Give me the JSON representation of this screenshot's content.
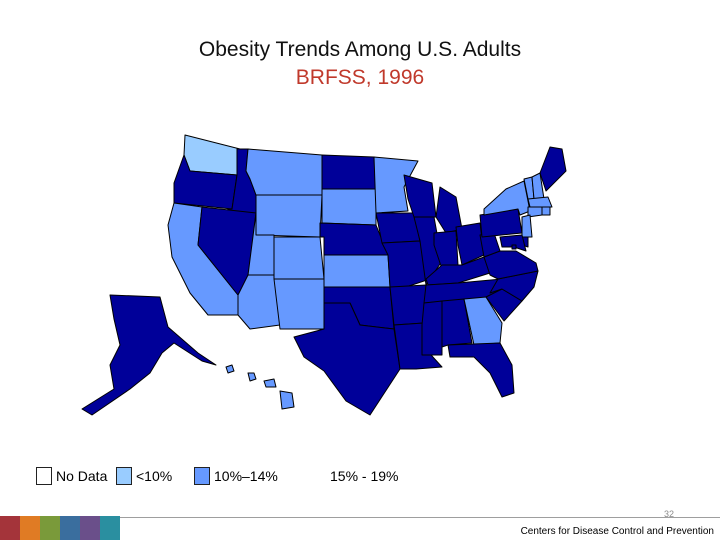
{
  "title": "Obesity Trends Among U.S. Adults",
  "subtitle": "BRFSS, 1996",
  "colors": {
    "no_data": "#ffffff",
    "lt10": "#99ccff",
    "p10_14": "#6699ff",
    "p15_19": "#000099",
    "border": "#000000",
    "subtitle": "#c0392b"
  },
  "legend": [
    {
      "label": "No Data",
      "category": "no_data"
    },
    {
      "label": "<10%",
      "category": "lt10"
    },
    {
      "label": "10%–14%",
      "category": "p10_14"
    },
    {
      "label": "15% - 19%",
      "category": "p15_19"
    }
  ],
  "states": {
    "WA": "lt10",
    "OR": "p15_19",
    "ID": "p15_19",
    "MT": "p10_14",
    "WY": "p10_14",
    "CA": "p10_14",
    "NV": "p15_19",
    "UT": "p10_14",
    "AZ": "p10_14",
    "CO": "p10_14",
    "NM": "p10_14",
    "ND": "p15_19",
    "SD": "p10_14",
    "NE": "p15_19",
    "KS": "p10_14",
    "OK": "p15_19",
    "TX": "p15_19",
    "MN": "p10_14",
    "IA": "p15_19",
    "MO": "p15_19",
    "AR": "p15_19",
    "LA": "p15_19",
    "WI": "p15_19",
    "IL": "p15_19",
    "MI": "p15_19",
    "IN": "p15_19",
    "OH": "p15_19",
    "KY": "p15_19",
    "TN": "p15_19",
    "MS": "p15_19",
    "AL": "p15_19",
    "GA": "p10_14",
    "FL": "p15_19",
    "SC": "p15_19",
    "NC": "p15_19",
    "VA": "p15_19",
    "WV": "p15_19",
    "PA": "p15_19",
    "NY": "p10_14",
    "VT": "p10_14",
    "NH": "p10_14",
    "ME": "p15_19",
    "MA": "p10_14",
    "RI": "p10_14",
    "CT": "p10_14",
    "NJ": "p10_14",
    "DE": "p15_19",
    "MD": "p15_19",
    "DC": "p15_19",
    "AK": "p15_19",
    "HI": "p10_14"
  },
  "page_number": "32",
  "footer": "Centers for Disease Control and Prevention",
  "bottom_bar_colors": [
    "#a4343a",
    "#e07b24",
    "#7a9a3a",
    "#3a6e9e",
    "#6a4f8a",
    "#2a8fa0"
  ]
}
